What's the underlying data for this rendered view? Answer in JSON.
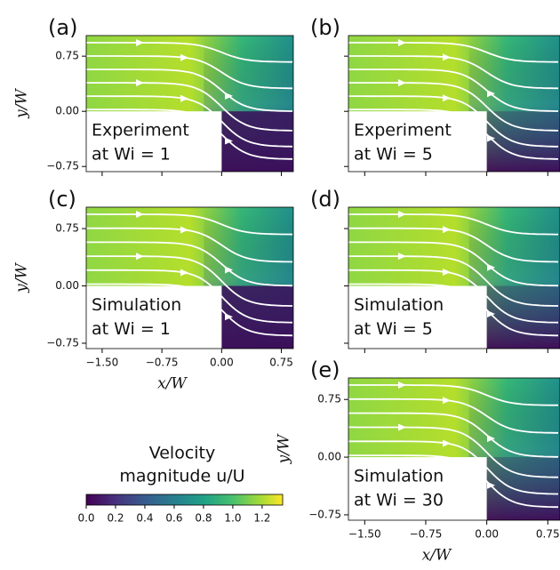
{
  "chart_data": [
    {
      "type": "streamplot",
      "panel_label": "(a)",
      "text": [
        "Experiment",
        "at Wi = 1"
      ],
      "ylabel": "y/W",
      "xlim": [
        -1.7,
        0.9
      ],
      "ylim": [
        -0.82,
        1.03
      ],
      "xticks": [
        {
          "value": -1.5,
          "label": "−1.50"
        },
        {
          "value": -0.75,
          "label": "−0.75"
        },
        {
          "value": 0,
          "label": "0.00"
        },
        0.75
      ],
      "yticks": [
        {
          "value": -0.75,
          "label": "−0.75"
        },
        {
          "value": 0,
          "label": "0.00"
        },
        0.75
      ],
      "xticklabels": false,
      "yticklabels": true
    },
    {
      "type": "streamplot",
      "panel_label": "(b)",
      "text": [
        "Experiment",
        "at Wi = 5"
      ],
      "xlim": [
        -1.7,
        0.9
      ],
      "ylim": [
        -0.82,
        1.03
      ],
      "xticks": [
        {
          "value": -1.5,
          "label": "−1.50"
        },
        {
          "value": -0.75,
          "label": "−0.75"
        },
        {
          "value": 0,
          "label": "0.00"
        },
        0.75
      ],
      "yticks": [
        {
          "value": -0.75,
          "label": "−0.75"
        },
        {
          "value": 0,
          "label": "0.00"
        },
        0.75
      ],
      "xticklabels": false,
      "yticklabels": false
    },
    {
      "type": "streamplot",
      "panel_label": "(c)",
      "text": [
        "Simulation",
        "at Wi = 1"
      ],
      "xlabel": "x/W",
      "ylabel": "y/W",
      "xlim": [
        -1.7,
        0.9
      ],
      "ylim": [
        -0.82,
        1.03
      ],
      "xticks": [
        {
          "value": -1.5,
          "label": "−1.50"
        },
        {
          "value": -0.75,
          "label": "−0.75"
        },
        {
          "value": 0,
          "label": "0.00"
        },
        0.75
      ],
      "yticks": [
        {
          "value": -0.75,
          "label": "−0.75"
        },
        {
          "value": 0,
          "label": "0.00"
        },
        0.75
      ],
      "xticklabels": true,
      "yticklabels": true
    },
    {
      "type": "streamplot",
      "panel_label": "(d)",
      "text": [
        "Simulation",
        "at Wi = 5"
      ],
      "xlim": [
        -1.7,
        0.9
      ],
      "ylim": [
        -0.82,
        1.03
      ],
      "xticks": [
        {
          "value": -1.5,
          "label": "−1.50"
        },
        {
          "value": -0.75,
          "label": "−0.75"
        },
        {
          "value": 0,
          "label": "0.00"
        },
        0.75
      ],
      "yticks": [
        {
          "value": -0.75,
          "label": "−0.75"
        },
        {
          "value": 0,
          "label": "0.00"
        },
        0.75
      ],
      "xticklabels": false,
      "yticklabels": false
    },
    {
      "type": "streamplot",
      "panel_label": "(e)",
      "text": [
        "Simulation",
        "at Wi = 30"
      ],
      "xlabel": "x/W",
      "ylabel": "y/W",
      "xlim": [
        -1.7,
        0.9
      ],
      "ylim": [
        -0.82,
        1.03
      ],
      "xticks": [
        {
          "value": -1.5,
          "label": "−1.50"
        },
        {
          "value": -0.75,
          "label": "−0.75"
        },
        {
          "value": 0,
          "label": "0.00"
        },
        0.75
      ],
      "yticks": [
        {
          "value": -0.75,
          "label": "−0.75"
        },
        {
          "value": 0,
          "label": "0.00"
        },
        0.75
      ],
      "xticklabels": true,
      "yticklabels": true
    },
    {
      "type": "colorbar",
      "title": [
        "Velocity",
        "magnitude u/U"
      ],
      "xlim": [
        0,
        1.34
      ],
      "xticks": [
        {
          "value": 0,
          "label": "0.0"
        },
        0.2,
        0.4,
        0.6,
        0.8,
        {
          "value": 1,
          "label": "1.0"
        },
        1.2
      ]
    }
  ]
}
